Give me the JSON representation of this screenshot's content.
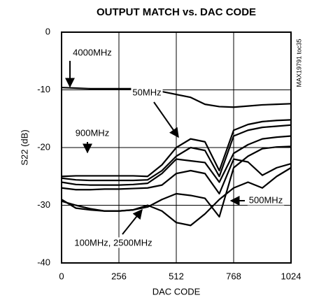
{
  "chart_data": {
    "type": "line",
    "title": "OUTPUT MATCH vs. DAC CODE",
    "figure_id": "MAX19791 toc35",
    "xlabel": "DAC CODE",
    "ylabel": "S22 (dB)",
    "x": [
      0,
      64,
      128,
      192,
      256,
      320,
      384,
      448,
      512,
      576,
      640,
      704,
      768,
      832,
      896,
      960,
      1024
    ],
    "series": [
      {
        "color": "#000000",
        "values": [
          -9.6,
          -9.7,
          -9.8,
          -9.8,
          -9.8,
          -9.8,
          -9.9,
          -10.3,
          -10.8,
          -11.3,
          -12.5,
          -12.9,
          -13,
          -12.8,
          -12.6,
          -12.5,
          -12.4
        ]
      },
      {
        "color": "#000000",
        "values": [
          -25,
          -24.9,
          -24.9,
          -24.9,
          -24.9,
          -24.9,
          -25,
          -23,
          -20,
          -18.5,
          -19,
          -24,
          -17,
          -16,
          -15.5,
          -15.3,
          -15.2
        ]
      },
      {
        "color": "#000000",
        "values": [
          -25.3,
          -25.6,
          -25.7,
          -25.7,
          -25.7,
          -25.7,
          -25.6,
          -24,
          -21.5,
          -20,
          -20.5,
          -25,
          -18,
          -17,
          -16.5,
          -16.3,
          -16.1
        ]
      },
      {
        "color": "#000000",
        "values": [
          -26,
          -26.4,
          -26.5,
          -26.5,
          -26.5,
          -26.4,
          -26.2,
          -24.5,
          -22,
          -22.3,
          -22.6,
          -26,
          -21,
          -19.5,
          -18.5,
          -18.2,
          -18
        ]
      },
      {
        "color": "#000000",
        "values": [
          -27,
          -27.3,
          -27.3,
          -27.2,
          -27.2,
          -27.1,
          -27,
          -26.5,
          -24.5,
          -24,
          -24.5,
          -28,
          -22,
          -22.5,
          -24.8,
          -23.5,
          -22.8
        ]
      },
      {
        "color": "#000000",
        "values": [
          -29,
          -30.5,
          -30.8,
          -31,
          -31,
          -30.8,
          -30.3,
          -29,
          -28,
          -28.3,
          -28.8,
          -32,
          -23.5,
          -21.5,
          -20.2,
          -19.9,
          -19.8
        ]
      },
      {
        "color": "#000000",
        "values": [
          -29.3,
          -30,
          -30.6,
          -31,
          -31,
          -30.8,
          -30,
          -31,
          -33,
          -33.5,
          -31.5,
          -29,
          -27,
          -26,
          -27,
          -25,
          -23.5
        ]
      }
    ],
    "annotations": [
      "4000MHz",
      "900MHz",
      "50MHz",
      "500MHz",
      "100MHz, 2500MHz"
    ],
    "xlim": [
      0,
      1024
    ],
    "xticks": [
      0,
      256,
      512,
      768,
      1024
    ],
    "ylim": [
      -40,
      0
    ],
    "yticks": [
      0,
      -10,
      -20,
      -30,
      -40
    ],
    "grid": true
  }
}
